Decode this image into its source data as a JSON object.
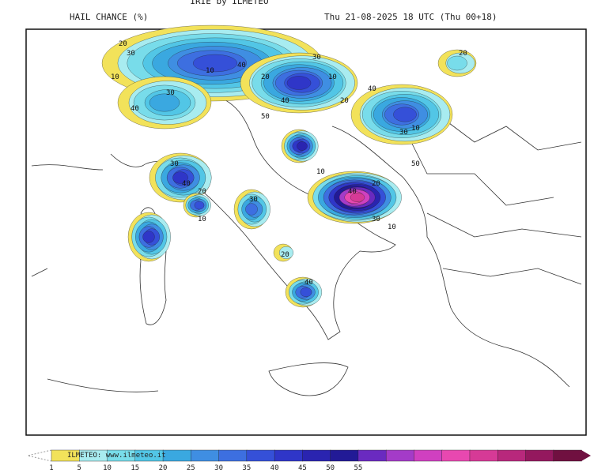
{
  "header": {
    "source": "IRIE by ILMETEO",
    "title": "HAIL CHANCE (%)",
    "date": "Thu 21-08-2025 18 UTC (Thu 00+18)"
  },
  "map": {
    "labels": [
      "20",
      "30",
      "10",
      "40",
      "30",
      "40",
      "20",
      "10",
      "50",
      "40",
      "30",
      "10",
      "20",
      "40",
      "30",
      "10",
      "50",
      "40",
      "20",
      "30",
      "10",
      "40",
      "30",
      "20",
      "10",
      "40",
      "30",
      "20",
      "10",
      "20"
    ]
  },
  "colorbar": {
    "credit": "ILMETEO: www.ilmeteo.it",
    "ticks": [
      1,
      5,
      10,
      15,
      20,
      25,
      30,
      35,
      40,
      45,
      50,
      55
    ],
    "colors": [
      "#f2e25a",
      "#a8ecf0",
      "#78dcea",
      "#52c6e6",
      "#3aa8e0",
      "#3f8ee2",
      "#3d6fe0",
      "#3550d8",
      "#2f36c8",
      "#2a24b0",
      "#221a96",
      "#6a2ac0",
      "#a43bc8",
      "#d040c0",
      "#e848b0",
      "#d63a96",
      "#b8287c",
      "#94185e",
      "#701040"
    ]
  }
}
